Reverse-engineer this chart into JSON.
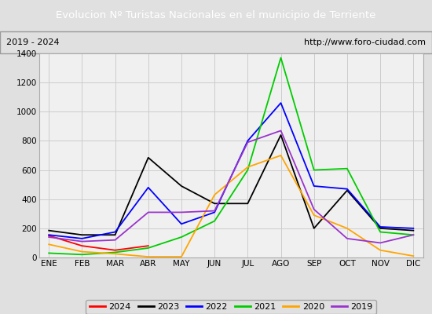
{
  "title": "Evolucion Nº Turistas Nacionales en el municipio de Terriente",
  "subtitle_left": "2019 - 2024",
  "subtitle_right": "http://www.foro-ciudad.com",
  "title_bg_color": "#4d7ebf",
  "title_text_color": "#ffffff",
  "months": [
    "ENE",
    "FEB",
    "MAR",
    "ABR",
    "MAY",
    "JUN",
    "JUL",
    "AGO",
    "SEP",
    "OCT",
    "NOV",
    "DIC"
  ],
  "ylim": [
    0,
    1400
  ],
  "yticks": [
    0,
    200,
    400,
    600,
    800,
    1000,
    1200,
    1400
  ],
  "series": {
    "2024": {
      "color": "#ff0000",
      "values": [
        150,
        80,
        50,
        80,
        null,
        null,
        null,
        null,
        null,
        null,
        null,
        null
      ]
    },
    "2023": {
      "color": "#000000",
      "values": [
        185,
        155,
        155,
        685,
        490,
        370,
        370,
        840,
        200,
        460,
        200,
        185
      ]
    },
    "2022": {
      "color": "#0000ff",
      "values": [
        155,
        130,
        175,
        480,
        230,
        310,
        800,
        1060,
        490,
        470,
        210,
        200
      ]
    },
    "2021": {
      "color": "#00cc00",
      "values": [
        30,
        20,
        35,
        65,
        140,
        250,
        600,
        1370,
        600,
        610,
        175,
        155
      ]
    },
    "2020": {
      "color": "#ffa500",
      "values": [
        90,
        40,
        25,
        5,
        5,
        430,
        620,
        700,
        290,
        200,
        50,
        10
      ]
    },
    "2019": {
      "color": "#9933cc",
      "values": [
        140,
        110,
        120,
        310,
        310,
        320,
        790,
        870,
        330,
        130,
        100,
        155
      ]
    }
  },
  "legend_order": [
    "2024",
    "2023",
    "2022",
    "2021",
    "2020",
    "2019"
  ],
  "grid_color": "#cccccc",
  "plot_bg_color": "#f0f0f0",
  "fig_bg_color": "#e0e0e0",
  "subtitle_bg_color": "#e8e8e8"
}
